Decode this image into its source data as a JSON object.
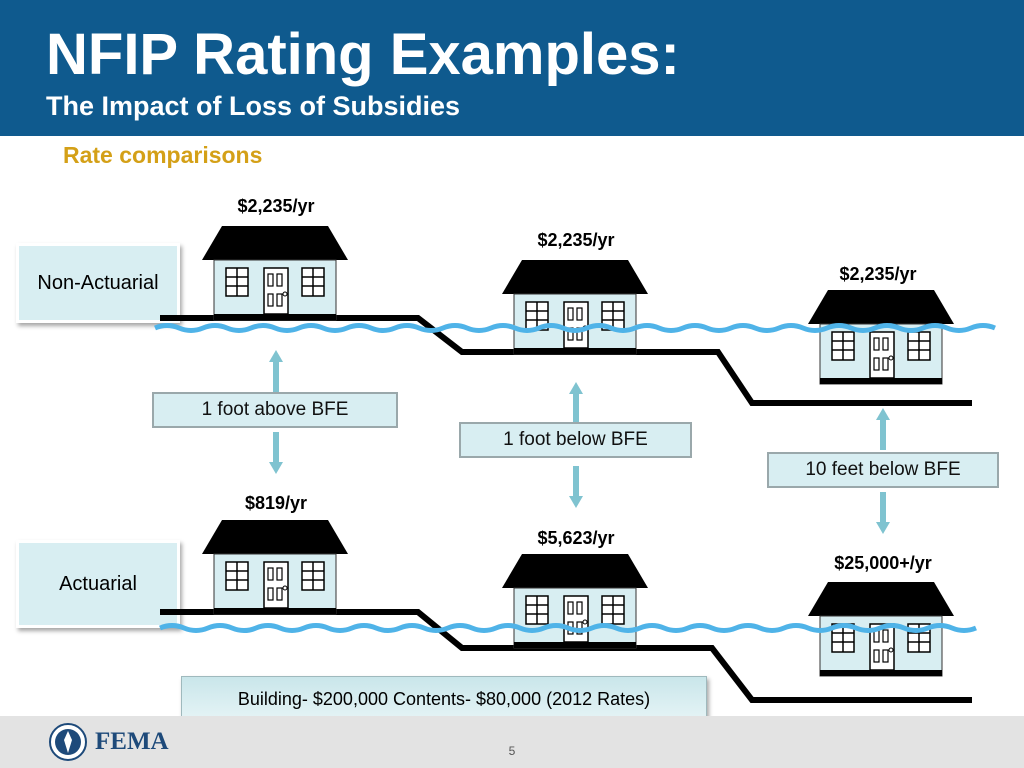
{
  "header": {
    "title": "NFIP Rating Examples:",
    "subtitle": "The Impact of Loss of Subsidies"
  },
  "section_label": "Rate comparisons",
  "rows": {
    "non_actuarial": {
      "label": "Non-Actuarial",
      "prices": [
        "$2,235/yr",
        "$2,235/yr",
        "$2,235/yr"
      ]
    },
    "actuarial": {
      "label": "Actuarial",
      "prices": [
        "$819/yr",
        "$5,623/yr",
        "$25,000+/yr"
      ]
    }
  },
  "elevations": [
    "1 foot above BFE",
    "1 foot below BFE",
    "10 feet below BFE"
  ],
  "footnote": "Building- $200,000 Contents- $80,000 (2012 Rates)",
  "footer": {
    "logo_text": "FEMA",
    "page_number": "5"
  },
  "colors": {
    "header_bg": "#0f5a8e",
    "section_label": "#d4a017",
    "water": "#4fb3e8",
    "house_wall": "#d8eef2",
    "label_box": "#d8eef2"
  }
}
